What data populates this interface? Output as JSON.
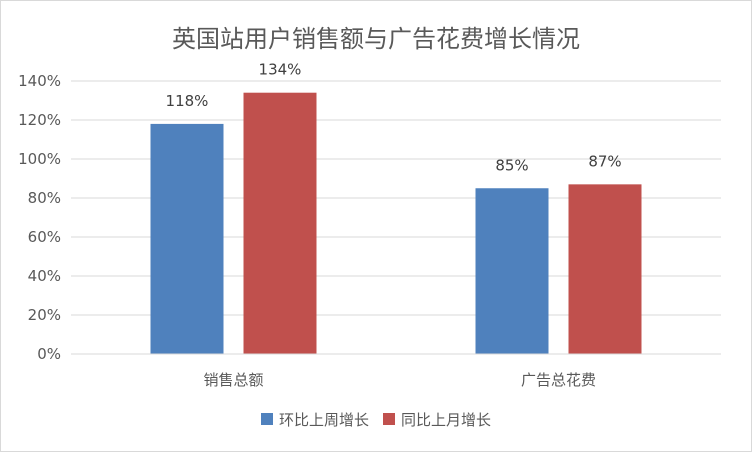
{
  "chart_data": {
    "type": "bar",
    "title": "英国站用户销售额与广告花费增长情况",
    "categories": [
      "销售总额",
      "广告总花费"
    ],
    "series": [
      {
        "name": "环比上周增长",
        "values": [
          118,
          85
        ],
        "labels": [
          "118%",
          "85%"
        ],
        "color": "#4f81bd"
      },
      {
        "name": "同比上月增长",
        "values": [
          134,
          87
        ],
        "labels": [
          "134%",
          "87%"
        ],
        "color": "#c0504d"
      }
    ],
    "yTicks": [
      "0%",
      "20%",
      "40%",
      "60%",
      "80%",
      "100%",
      "120%",
      "140%"
    ],
    "ylim": [
      0,
      140
    ],
    "grid": true,
    "legend_position": "bottom"
  }
}
